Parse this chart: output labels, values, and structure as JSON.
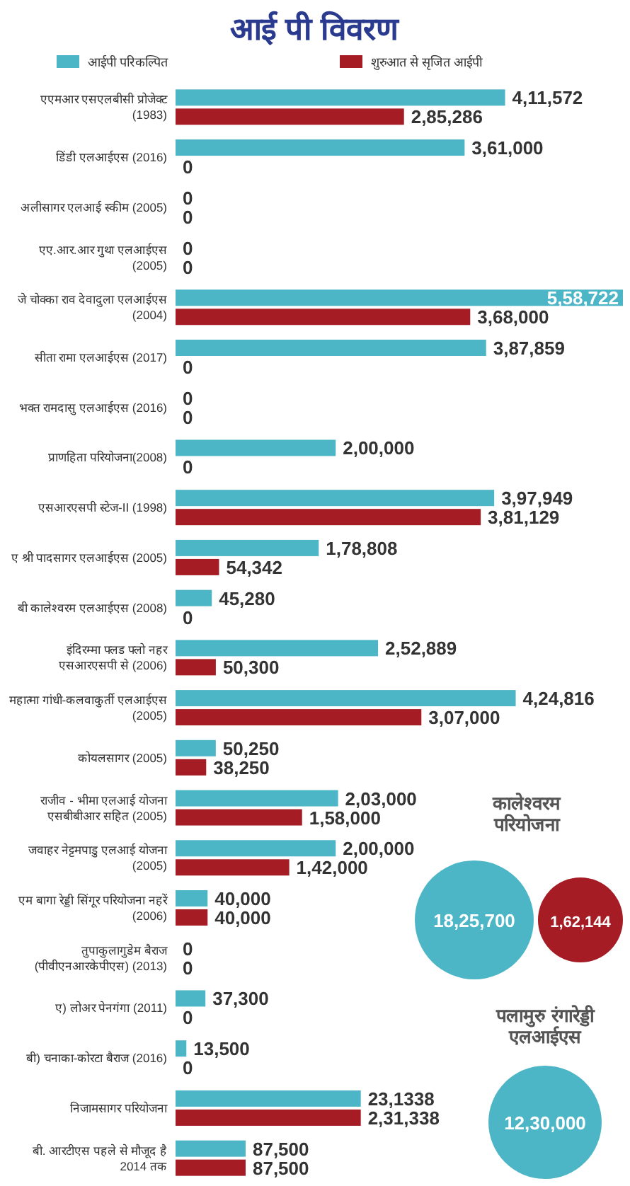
{
  "chart_data": [
    {
      "type": "bar",
      "orientation": "horizontal",
      "title": "आई पी विवरण",
      "legend": "top",
      "categories": [
        "एएमआर एसएलबीसी प्रोजेक्ट (1983)",
        "डिंडी एलआईएस (2016)",
        "अलीसागर एलआई स्कीम (2005)",
        "एए.आर.आर गुथा एलआईएस (2005)",
        "जे चोक्का राव देवादुला एलआईएस (2004)",
        "सीता रामा एलआईएस (2017)",
        "भक्त रामदासु एलआईएस (2016)",
        "प्राणहिता परियोजना(2008)",
        "एसआरएसपी स्टेज-II (1998)",
        "ए श्री पादसागर एलआईएस (2005)",
        "बी कालेश्वरम एलआईएस (2008)",
        "इंदिरम्मा फ्लड फ्लो नहर एसआरएसपी से (2006)",
        "महात्मा गांधी-कलवाकुर्ती एलआईएस (2005)",
        "कोयलसागर (2005)",
        "राजीव - भीमा एलआई योजना एसबीबीआर सहित (2005)",
        "जवाहर नेट्टमपाडु एलआई योजना (2005)",
        "एम बागा रेड्डी सिंगूर परियोजना नहरें (2006)",
        "तुपाकुलागुडेम बैराज (पीवीएनआरकेपीएस) (2013)",
        "ए) लोअर पेनगंगा (2011)",
        "बी) चनाका-कोरटा बैराज (2016)",
        "निजामसागर परियोजना",
        "बी. आरटीएस पहले से मौजूद है 2014 तक"
      ],
      "series": [
        {
          "name": "आईपी परिकल्पित",
          "color": "#4db6c6",
          "values": [
            411572,
            361000,
            0,
            0,
            558722,
            387859,
            0,
            200000,
            397949,
            178808,
            45280,
            252889,
            424816,
            50250,
            203000,
            200000,
            40000,
            0,
            37300,
            13500,
            231338,
            87500
          ],
          "value_labels": [
            "4,11,572",
            "3,61,000",
            "0",
            "0",
            "5,58,722",
            "3,87,859",
            "0",
            "2,00,000",
            "3,97,949",
            "1,78,808",
            "45,280",
            "2,52,889",
            "4,24,816",
            "50,250",
            "2,03,000",
            "2,00,000",
            "40,000",
            "0",
            "37,300",
            "13,500",
            "23,1338",
            "87,500"
          ]
        },
        {
          "name": "शुरुआत से सृजित आईपी",
          "color": "#a51c24",
          "values": [
            285286,
            0,
            0,
            0,
            368000,
            0,
            0,
            0,
            381129,
            54342,
            0,
            50300,
            307000,
            38250,
            158000,
            142000,
            40000,
            0,
            0,
            0,
            231338,
            87500
          ],
          "value_labels": [
            "2,85,286",
            "0",
            "0",
            "0",
            "3,68,000",
            "0",
            "0",
            "0",
            "3,81,129",
            "54,342",
            "0",
            "50,300",
            "3,07,000",
            "38,250",
            "1,58,000",
            "1,42,000",
            "40,000",
            "0",
            "0",
            "0",
            "2,31,338",
            "87,500"
          ]
        }
      ]
    },
    {
      "type": "other",
      "categories": [
        "कालेश्वरम परियोजना",
        "पलामुरु रंगारेड्डी एलआईएस"
      ],
      "series": [
        {
          "color": "#4db6c6",
          "values": [
            1825700,
            1230000
          ],
          "value_labels": [
            "18,25,700",
            "12,30,000"
          ]
        },
        {
          "color": "#a51c24",
          "values": [
            162144,
            null
          ],
          "value_labels": [
            "1,62,144",
            null
          ]
        }
      ]
    }
  ]
}
